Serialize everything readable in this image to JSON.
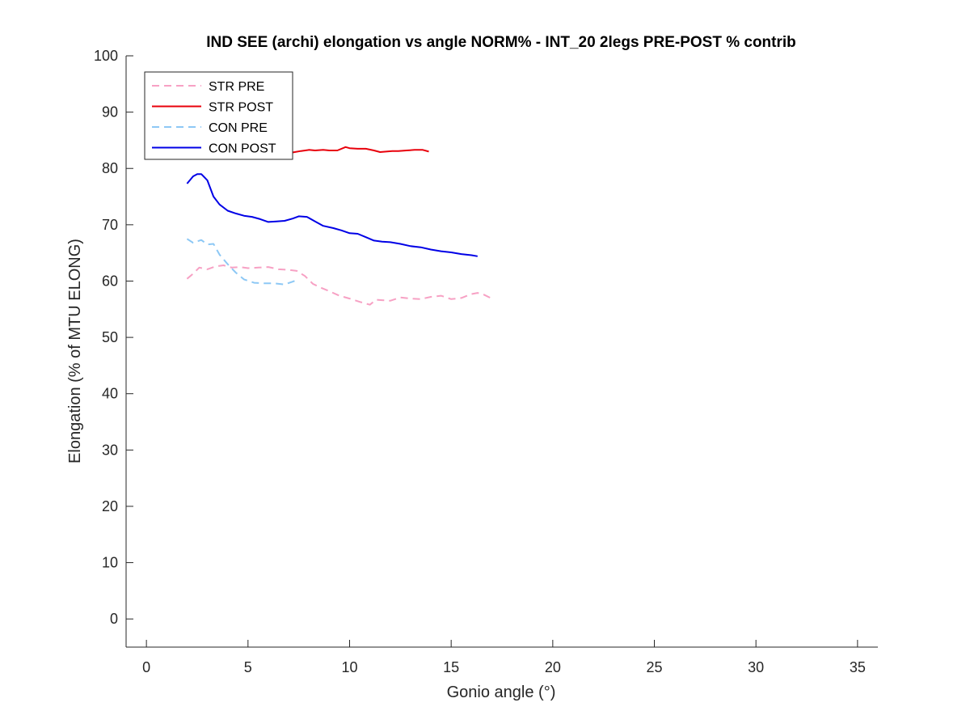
{
  "chart_data": {
    "type": "line",
    "title": "IND SEE (archi) elongation vs angle NORM% - INT_20 2legs PRE-POST % contrib",
    "xlabel": "Gonio angle (°)",
    "ylabel": "Elongation (% of MTU ELONG)",
    "xlim": [
      -1,
      36
    ],
    "ylim": [
      -5,
      100
    ],
    "xticks": [
      0,
      5,
      10,
      15,
      20,
      25,
      30,
      35
    ],
    "yticks": [
      0,
      10,
      20,
      30,
      40,
      50,
      60,
      70,
      80,
      90,
      100
    ],
    "grid": false,
    "legend_position": "top-left",
    "series": [
      {
        "name": "STR PRE",
        "color": "#f7a1c4",
        "style": "dashed",
        "x": [
          2.0,
          2.3,
          2.6,
          3.0,
          3.4,
          3.8,
          4.2,
          4.6,
          5.0,
          5.5,
          6.0,
          6.5,
          7.0,
          7.4,
          7.8,
          8.2,
          8.6,
          9.0,
          9.5,
          10.0,
          10.5,
          11.0,
          11.3,
          11.6,
          12.0,
          12.5,
          13.0,
          13.5,
          14.0,
          14.5,
          15.0,
          15.5,
          16.0,
          16.3,
          16.6,
          17.0
        ],
        "y": [
          60.4,
          61.3,
          62.4,
          62.1,
          62.6,
          62.8,
          62.4,
          62.5,
          62.3,
          62.4,
          62.5,
          62.1,
          62.0,
          61.8,
          60.9,
          59.5,
          58.8,
          58.2,
          57.4,
          56.9,
          56.3,
          55.8,
          56.7,
          56.6,
          56.5,
          57.1,
          56.9,
          56.8,
          57.2,
          57.4,
          56.8,
          57.0,
          57.7,
          57.9,
          57.6,
          56.9
        ]
      },
      {
        "name": "STR POST",
        "color": "#e8000b",
        "style": "solid",
        "x": [
          6.8,
          7.0,
          7.3,
          7.6,
          8.0,
          8.3,
          8.7,
          9.0,
          9.4,
          9.8,
          10.0,
          10.4,
          10.8,
          11.2,
          11.5,
          11.8,
          12.1,
          12.4,
          12.8,
          13.2,
          13.6,
          13.9
        ],
        "y": [
          83.2,
          82.7,
          82.9,
          83.1,
          83.3,
          83.2,
          83.3,
          83.2,
          83.2,
          83.8,
          83.6,
          83.5,
          83.5,
          83.2,
          82.9,
          83.0,
          83.1,
          83.1,
          83.2,
          83.3,
          83.3,
          83.0
        ]
      },
      {
        "name": "CON PRE",
        "color": "#8dc8f5",
        "style": "dashed",
        "x": [
          2.0,
          2.3,
          2.7,
          3.0,
          3.3,
          3.6,
          4.0,
          4.4,
          4.8,
          5.3,
          5.8,
          6.3,
          6.8,
          7.2,
          7.5
        ],
        "y": [
          67.5,
          66.8,
          67.3,
          66.5,
          66.6,
          64.7,
          63.0,
          61.5,
          60.3,
          59.7,
          59.6,
          59.6,
          59.4,
          59.9,
          60.3
        ]
      },
      {
        "name": "CON POST",
        "color": "#0000e6",
        "style": "solid",
        "x": [
          2.0,
          2.3,
          2.5,
          2.7,
          3.0,
          3.3,
          3.6,
          4.0,
          4.4,
          4.8,
          5.2,
          5.6,
          6.0,
          6.4,
          6.8,
          7.2,
          7.5,
          7.9,
          8.3,
          8.7,
          9.2,
          9.6,
          10.0,
          10.4,
          10.8,
          11.2,
          11.6,
          12.0,
          12.5,
          13.0,
          13.5,
          14.0,
          14.5,
          15.0,
          15.5,
          16.0,
          16.3
        ],
        "y": [
          77.3,
          78.6,
          79.0,
          79.0,
          77.9,
          75.0,
          73.6,
          72.5,
          72.0,
          71.6,
          71.4,
          71.0,
          70.5,
          70.6,
          70.7,
          71.1,
          71.5,
          71.4,
          70.6,
          69.8,
          69.4,
          69.0,
          68.5,
          68.4,
          67.8,
          67.2,
          67.0,
          66.9,
          66.6,
          66.2,
          66.0,
          65.6,
          65.3,
          65.1,
          64.8,
          64.6,
          64.4
        ]
      }
    ]
  }
}
